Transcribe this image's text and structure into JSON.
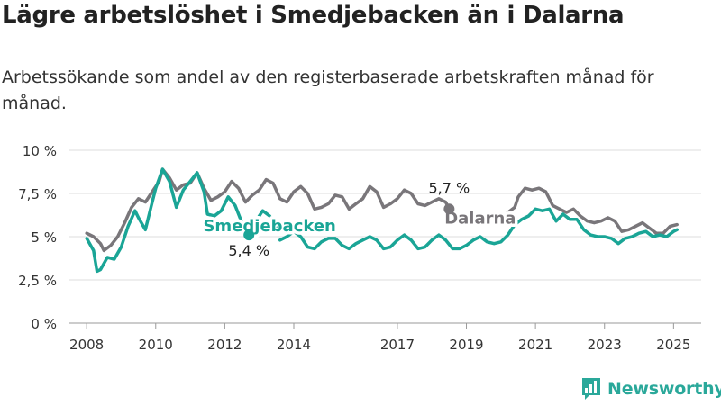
{
  "header": {
    "title": "Lägre arbetslöshet i Smedjebacken än i Dalarna",
    "subtitle": "Arbetssökande som andel av den registerbaserade arbetskraften månad för månad."
  },
  "brand": {
    "name": "Newsworthy",
    "logo_icon": "bar-chart-icon",
    "color": "#2aa89a"
  },
  "chart_data": {
    "type": "line",
    "ylim": [
      0,
      10
    ],
    "xlim": [
      2007.5,
      2025.8
    ],
    "y_ticks": [
      0,
      2.5,
      5,
      7.5,
      10
    ],
    "y_tick_labels": [
      "0 %",
      "2,5 %",
      "5 %",
      "7,5 %",
      "10 %"
    ],
    "x_ticks": [
      2008,
      2010,
      2012,
      2014,
      2017,
      2019,
      2021,
      2023,
      2025
    ],
    "x_tick_labels": [
      "2008",
      "2010",
      "2012",
      "2014",
      "2017",
      "2019",
      "2021",
      "2023",
      "2025"
    ],
    "grid": "horizontal",
    "series": [
      {
        "name": "Dalarna",
        "color": "#79767a",
        "end_label": "5,7 %",
        "points": [
          [
            2008.0,
            5.2
          ],
          [
            2008.2,
            5.0
          ],
          [
            2008.4,
            4.6
          ],
          [
            2008.5,
            4.2
          ],
          [
            2008.7,
            4.5
          ],
          [
            2008.9,
            5.0
          ],
          [
            2009.1,
            5.8
          ],
          [
            2009.3,
            6.7
          ],
          [
            2009.5,
            7.2
          ],
          [
            2009.7,
            7.0
          ],
          [
            2009.9,
            7.6
          ],
          [
            2010.1,
            8.2
          ],
          [
            2010.2,
            8.9
          ],
          [
            2010.4,
            8.4
          ],
          [
            2010.6,
            7.7
          ],
          [
            2010.8,
            8.0
          ],
          [
            2011.0,
            8.1
          ],
          [
            2011.2,
            8.7
          ],
          [
            2011.4,
            7.8
          ],
          [
            2011.6,
            7.1
          ],
          [
            2011.8,
            7.3
          ],
          [
            2012.0,
            7.6
          ],
          [
            2012.2,
            8.2
          ],
          [
            2012.4,
            7.8
          ],
          [
            2012.6,
            7.0
          ],
          [
            2012.8,
            7.4
          ],
          [
            2013.0,
            7.7
          ],
          [
            2013.2,
            8.3
          ],
          [
            2013.4,
            8.1
          ],
          [
            2013.6,
            7.2
          ],
          [
            2013.8,
            7.0
          ],
          [
            2014.0,
            7.6
          ],
          [
            2014.2,
            7.9
          ],
          [
            2014.4,
            7.5
          ],
          [
            2014.6,
            6.6
          ],
          [
            2014.8,
            6.7
          ],
          [
            2015.0,
            6.9
          ],
          [
            2015.2,
            7.4
          ],
          [
            2015.4,
            7.3
          ],
          [
            2015.6,
            6.6
          ],
          [
            2015.8,
            6.9
          ],
          [
            2016.0,
            7.2
          ],
          [
            2016.2,
            7.9
          ],
          [
            2016.4,
            7.6
          ],
          [
            2016.6,
            6.7
          ],
          [
            2016.8,
            6.9
          ],
          [
            2017.0,
            7.2
          ],
          [
            2017.2,
            7.7
          ],
          [
            2017.4,
            7.5
          ],
          [
            2017.6,
            6.9
          ],
          [
            2017.8,
            6.8
          ],
          [
            2018.0,
            7.0
          ],
          [
            2018.2,
            7.2
          ],
          [
            2018.4,
            7.0
          ],
          [
            2018.5,
            6.6
          ]
        ]
      },
      {
        "name": "Dalarna-b",
        "color": "#79767a",
        "points": [
          [
            2020.0,
            6.1
          ],
          [
            2020.2,
            6.4
          ],
          [
            2020.4,
            6.7
          ],
          [
            2020.5,
            7.3
          ],
          [
            2020.7,
            7.8
          ],
          [
            2020.9,
            7.7
          ],
          [
            2021.1,
            7.8
          ],
          [
            2021.3,
            7.6
          ],
          [
            2021.5,
            6.8
          ],
          [
            2021.7,
            6.6
          ],
          [
            2021.9,
            6.4
          ],
          [
            2022.1,
            6.6
          ],
          [
            2022.3,
            6.2
          ],
          [
            2022.5,
            5.9
          ],
          [
            2022.7,
            5.8
          ],
          [
            2022.9,
            5.9
          ],
          [
            2023.1,
            6.1
          ],
          [
            2023.3,
            5.9
          ],
          [
            2023.5,
            5.3
          ],
          [
            2023.7,
            5.4
          ],
          [
            2023.9,
            5.6
          ],
          [
            2024.1,
            5.8
          ],
          [
            2024.3,
            5.5
          ],
          [
            2024.5,
            5.2
          ],
          [
            2024.7,
            5.2
          ],
          [
            2024.9,
            5.6
          ],
          [
            2025.1,
            5.7
          ]
        ]
      },
      {
        "name": "Smedjebacken",
        "color": "#1aa596",
        "end_label": "5,4 %",
        "points": [
          [
            2008.0,
            4.9
          ],
          [
            2008.2,
            4.2
          ],
          [
            2008.3,
            3.0
          ],
          [
            2008.4,
            3.1
          ],
          [
            2008.6,
            3.8
          ],
          [
            2008.8,
            3.7
          ],
          [
            2009.0,
            4.4
          ],
          [
            2009.2,
            5.6
          ],
          [
            2009.4,
            6.5
          ],
          [
            2009.5,
            6.1
          ],
          [
            2009.7,
            5.4
          ],
          [
            2009.9,
            7.0
          ],
          [
            2010.0,
            7.8
          ],
          [
            2010.2,
            8.9
          ],
          [
            2010.4,
            8.2
          ],
          [
            2010.6,
            6.7
          ],
          [
            2010.8,
            7.7
          ],
          [
            2011.0,
            8.2
          ],
          [
            2011.2,
            8.7
          ],
          [
            2011.4,
            7.6
          ],
          [
            2011.5,
            6.3
          ],
          [
            2011.7,
            6.2
          ],
          [
            2011.9,
            6.5
          ],
          [
            2012.1,
            7.3
          ],
          [
            2012.3,
            6.8
          ],
          [
            2012.5,
            5.8
          ],
          [
            2012.7,
            5.1
          ]
        ]
      },
      {
        "name": "Smedjebacken-b",
        "color": "#1aa596",
        "points": [
          [
            2012.9,
            5.9
          ],
          [
            2013.1,
            6.5
          ],
          [
            2013.3,
            6.2
          ],
          [
            2013.5,
            5.5
          ]
        ]
      },
      {
        "name": "Smedjebacken-c",
        "color": "#1aa596",
        "points": [
          [
            2013.6,
            4.8
          ],
          [
            2013.8,
            5.0
          ],
          [
            2014.0,
            5.3
          ],
          [
            2014.2,
            5.0
          ],
          [
            2014.4,
            4.4
          ],
          [
            2014.6,
            4.3
          ],
          [
            2014.8,
            4.7
          ],
          [
            2015.0,
            4.9
          ],
          [
            2015.2,
            4.9
          ],
          [
            2015.4,
            4.5
          ],
          [
            2015.6,
            4.3
          ],
          [
            2015.8,
            4.6
          ],
          [
            2016.0,
            4.8
          ],
          [
            2016.2,
            5.0
          ],
          [
            2016.4,
            4.8
          ],
          [
            2016.6,
            4.3
          ],
          [
            2016.8,
            4.4
          ],
          [
            2017.0,
            4.8
          ],
          [
            2017.2,
            5.1
          ],
          [
            2017.4,
            4.8
          ],
          [
            2017.6,
            4.3
          ],
          [
            2017.8,
            4.4
          ],
          [
            2018.0,
            4.8
          ],
          [
            2018.2,
            5.1
          ],
          [
            2018.4,
            4.8
          ],
          [
            2018.6,
            4.3
          ],
          [
            2018.8,
            4.3
          ],
          [
            2019.0,
            4.5
          ],
          [
            2019.2,
            4.8
          ],
          [
            2019.4,
            5.0
          ],
          [
            2019.6,
            4.7
          ],
          [
            2019.8,
            4.6
          ],
          [
            2020.0,
            4.7
          ],
          [
            2020.2,
            5.1
          ],
          [
            2020.4,
            5.7
          ],
          [
            2020.6,
            6.0
          ],
          [
            2020.8,
            6.2
          ],
          [
            2021.0,
            6.6
          ],
          [
            2021.2,
            6.5
          ],
          [
            2021.4,
            6.6
          ],
          [
            2021.6,
            5.9
          ],
          [
            2021.8,
            6.3
          ],
          [
            2022.0,
            6.0
          ],
          [
            2022.2,
            6.0
          ],
          [
            2022.4,
            5.4
          ],
          [
            2022.6,
            5.1
          ],
          [
            2022.8,
            5.0
          ],
          [
            2023.0,
            5.0
          ],
          [
            2023.2,
            4.9
          ],
          [
            2023.4,
            4.6
          ],
          [
            2023.6,
            4.9
          ],
          [
            2023.8,
            5.0
          ],
          [
            2024.0,
            5.2
          ],
          [
            2024.2,
            5.3
          ],
          [
            2024.4,
            5.0
          ],
          [
            2024.6,
            5.1
          ],
          [
            2024.8,
            5.0
          ],
          [
            2025.0,
            5.3
          ],
          [
            2025.1,
            5.4
          ]
        ]
      }
    ],
    "annotations": [
      {
        "text": "Smedjebacken",
        "x": 2013.3,
        "y": 5.3,
        "color": "#1aa596",
        "ref": "series_label"
      },
      {
        "text": "Dalarna",
        "x": 2019.4,
        "y": 5.75,
        "color": "#79767a",
        "ref": "series_label"
      }
    ]
  }
}
